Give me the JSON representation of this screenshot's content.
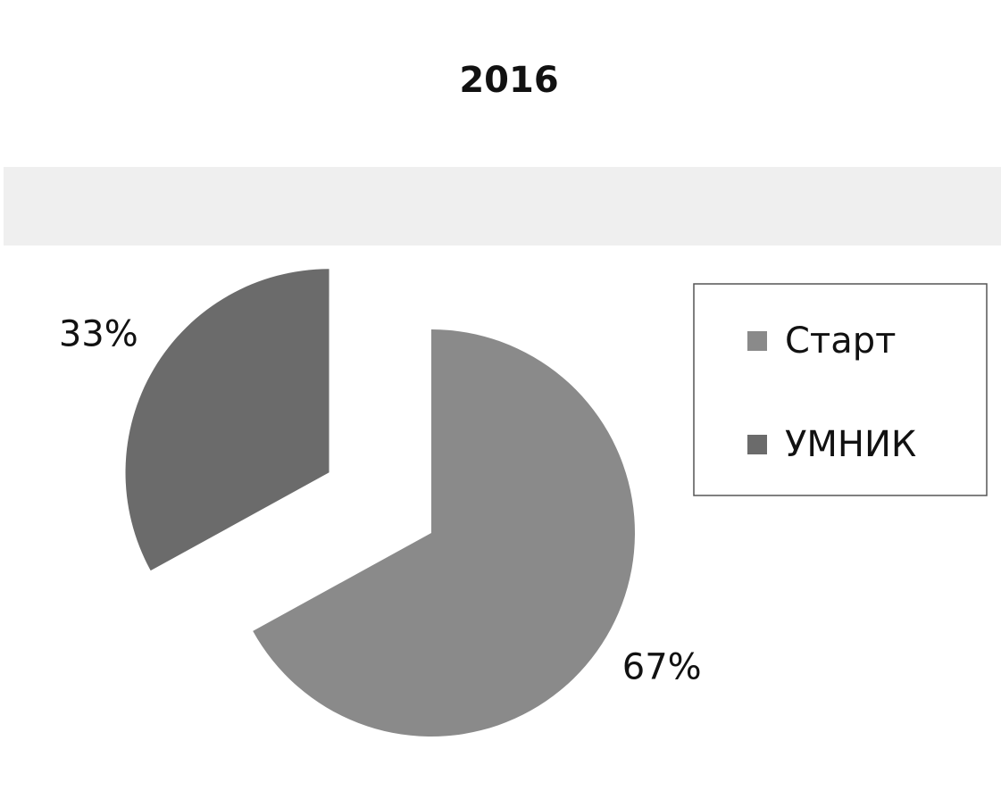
{
  "chart_data": {
    "type": "pie",
    "title": "2016",
    "categories": [
      "Старт",
      "УМНИК"
    ],
    "values": [
      67,
      33
    ],
    "value_labels": [
      "67%",
      "33%"
    ],
    "colors": [
      "#8a8a8a",
      "#6b6b6b"
    ],
    "legend": "right"
  }
}
